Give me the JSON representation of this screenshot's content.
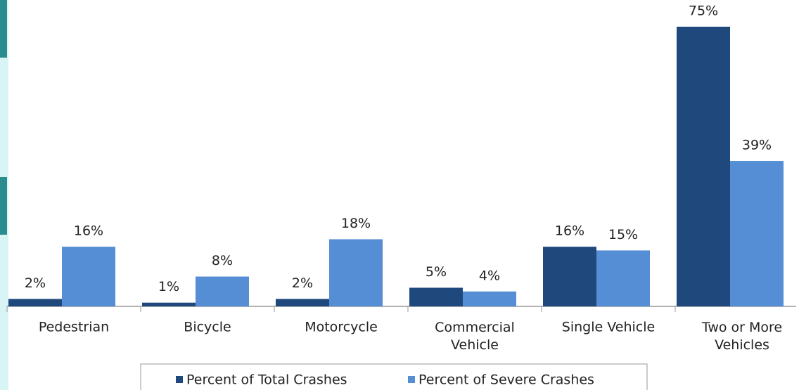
{
  "chart_data": {
    "type": "bar",
    "categories": [
      "Pedestrian",
      "Bicycle",
      "Motorcycle",
      "Commercial Vehicle",
      "Single Vehicle",
      "Two or More Vehicles"
    ],
    "series": [
      {
        "name": "Percent of Total Crashes",
        "color": "#1f497d",
        "values": [
          2,
          1,
          2,
          5,
          16,
          75
        ],
        "value_labels": [
          "2%",
          "1%",
          "2%",
          "5%",
          "16%",
          "75%"
        ]
      },
      {
        "name": "Percent of Severe Crashes",
        "color": "#558ed5",
        "values": [
          16,
          8,
          18,
          4,
          15,
          39
        ],
        "value_labels": [
          "16%",
          "8%",
          "18%",
          "4%",
          "15%",
          "39%"
        ]
      }
    ],
    "legend": "bottom"
  }
}
